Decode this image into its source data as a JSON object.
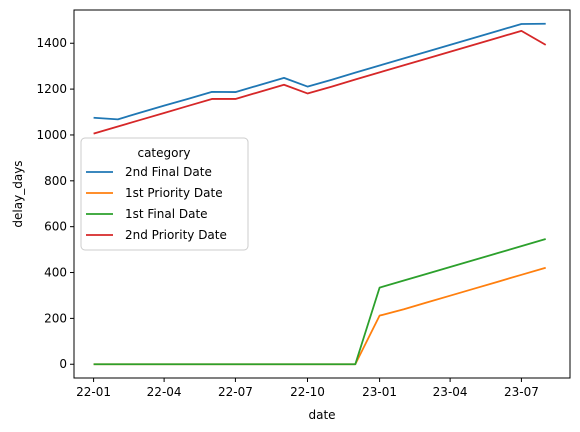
{
  "chart_data": {
    "type": "line",
    "xlabel": "date",
    "ylabel": "delay_days",
    "x_ticks": [
      "22-01",
      "22-04",
      "22-07",
      "22-10",
      "23-01",
      "23-04",
      "23-07"
    ],
    "y_ticks": [
      0,
      200,
      400,
      600,
      800,
      1000,
      1200,
      1400
    ],
    "xlim": [
      "2021-12-07",
      "2023-09-01"
    ],
    "ylim": [
      -60,
      1545
    ],
    "legend": {
      "title": "category",
      "placement": "center-left"
    },
    "series": [
      {
        "name": "2nd Final Date",
        "color": "#1f77b4",
        "points": [
          [
            "2022-01-01",
            1075
          ],
          [
            "2022-02-01",
            1068
          ],
          [
            "2022-03-01",
            1097
          ],
          [
            "2022-04-01",
            1128
          ],
          [
            "2022-05-01",
            1157
          ],
          [
            "2022-06-01",
            1188
          ],
          [
            "2022-07-01",
            1187
          ],
          [
            "2022-08-01",
            1218
          ],
          [
            "2022-09-01",
            1249
          ],
          [
            "2022-10-01",
            1211
          ],
          [
            "2022-11-01",
            1241
          ],
          [
            "2022-12-01",
            1272
          ],
          [
            "2023-01-01",
            1303
          ],
          [
            "2023-02-01",
            1334
          ],
          [
            "2023-03-01",
            1362
          ],
          [
            "2023-04-01",
            1393
          ],
          [
            "2023-05-01",
            1423
          ],
          [
            "2023-06-01",
            1454
          ],
          [
            "2023-07-01",
            1484
          ],
          [
            "2023-08-01",
            1485
          ]
        ]
      },
      {
        "name": "1st Priority Date",
        "color": "#ff7f0e",
        "points": [
          [
            "2022-01-01",
            0
          ],
          [
            "2022-02-01",
            0
          ],
          [
            "2022-03-01",
            0
          ],
          [
            "2022-04-01",
            0
          ],
          [
            "2022-05-01",
            0
          ],
          [
            "2022-06-01",
            0
          ],
          [
            "2022-07-01",
            0
          ],
          [
            "2022-08-01",
            0
          ],
          [
            "2022-09-01",
            0
          ],
          [
            "2022-10-01",
            0
          ],
          [
            "2022-11-01",
            0
          ],
          [
            "2022-12-01",
            0
          ],
          [
            "2023-01-01",
            212
          ],
          [
            "2023-02-01",
            240
          ],
          [
            "2023-03-01",
            268
          ],
          [
            "2023-04-01",
            299
          ],
          [
            "2023-05-01",
            329
          ],
          [
            "2023-06-01",
            360
          ],
          [
            "2023-07-01",
            390
          ],
          [
            "2023-08-01",
            421
          ]
        ]
      },
      {
        "name": "1st Final Date",
        "color": "#2ca02c",
        "points": [
          [
            "2022-01-01",
            0
          ],
          [
            "2022-02-01",
            0
          ],
          [
            "2022-03-01",
            0
          ],
          [
            "2022-04-01",
            0
          ],
          [
            "2022-05-01",
            0
          ],
          [
            "2022-06-01",
            0
          ],
          [
            "2022-07-01",
            0
          ],
          [
            "2022-08-01",
            0
          ],
          [
            "2022-09-01",
            0
          ],
          [
            "2022-10-01",
            0
          ],
          [
            "2022-11-01",
            0
          ],
          [
            "2022-12-01",
            0
          ],
          [
            "2023-01-01",
            334
          ],
          [
            "2023-02-01",
            365
          ],
          [
            "2023-03-01",
            393
          ],
          [
            "2023-04-01",
            424
          ],
          [
            "2023-05-01",
            454
          ],
          [
            "2023-06-01",
            485
          ],
          [
            "2023-07-01",
            515
          ],
          [
            "2023-08-01",
            546
          ]
        ]
      },
      {
        "name": "2nd Priority Date",
        "color": "#d62728",
        "points": [
          [
            "2022-01-01",
            1006
          ],
          [
            "2022-02-01",
            1037
          ],
          [
            "2022-03-01",
            1065
          ],
          [
            "2022-04-01",
            1096
          ],
          [
            "2022-05-01",
            1126
          ],
          [
            "2022-06-01",
            1157
          ],
          [
            "2022-07-01",
            1157
          ],
          [
            "2022-08-01",
            1188
          ],
          [
            "2022-09-01",
            1219
          ],
          [
            "2022-10-01",
            1181
          ],
          [
            "2022-11-01",
            1211
          ],
          [
            "2022-12-01",
            1242
          ],
          [
            "2023-01-01",
            1273
          ],
          [
            "2023-02-01",
            1304
          ],
          [
            "2023-03-01",
            1332
          ],
          [
            "2023-04-01",
            1363
          ],
          [
            "2023-05-01",
            1393
          ],
          [
            "2023-06-01",
            1424
          ],
          [
            "2023-07-01",
            1454
          ],
          [
            "2023-08-01",
            1393
          ]
        ]
      }
    ]
  }
}
